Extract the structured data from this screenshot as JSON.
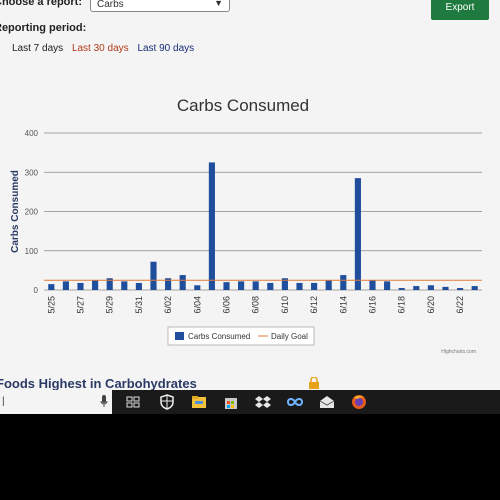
{
  "header": {
    "report_label": "Choose a report:",
    "report_value": "Carbs",
    "export_label": "Export",
    "period_label": "Reporting period:",
    "periods": [
      "Last 7 days",
      "Last 30 days",
      "Last 90 days"
    ]
  },
  "chart_data": {
    "type": "bar",
    "title": "Carbs Consumed",
    "ylabel": "Carbs Consumed",
    "xlabel": "",
    "ylim": [
      0,
      400
    ],
    "yticks": [
      0,
      100,
      200,
      300,
      400
    ],
    "categories": [
      "5/25",
      "5/26",
      "5/27",
      "5/28",
      "5/29",
      "5/30",
      "5/31",
      "6/01",
      "6/02",
      "6/03",
      "6/04",
      "6/05",
      "6/06",
      "6/07",
      "6/08",
      "6/09",
      "6/10",
      "6/11",
      "6/12",
      "6/13",
      "6/14",
      "6/15",
      "6/16",
      "6/17",
      "6/18",
      "6/19",
      "6/20",
      "6/21",
      "6/22",
      "6/23"
    ],
    "tick_labels": [
      "5/25",
      "5/27",
      "5/29",
      "5/31",
      "6/02",
      "6/04",
      "6/06",
      "6/08",
      "6/10",
      "6/12",
      "6/14",
      "6/16",
      "6/18",
      "6/20",
      "6/22"
    ],
    "series": [
      {
        "name": "Carbs Consumed",
        "type": "bar",
        "color": "#1f4e9c",
        "values": [
          15,
          22,
          18,
          25,
          30,
          22,
          18,
          72,
          30,
          38,
          12,
          325,
          20,
          22,
          22,
          18,
          30,
          18,
          18,
          25,
          38,
          285,
          25,
          22,
          5,
          10,
          12,
          8,
          5,
          10
        ]
      },
      {
        "name": "Daily Goal",
        "type": "line",
        "color": "#e07b39",
        "value": 25
      }
    ],
    "legend_position": "bottom",
    "grid": true,
    "credit": "Highcharts.com"
  },
  "footer": {
    "section_title": "Foods Highest in Carbohydrates"
  },
  "taskbar": {
    "cursor_char": "|",
    "icons": [
      "task-view-icon",
      "security-shield-icon",
      "file-explorer-icon",
      "store-icon",
      "dropbox-icon",
      "infinity-icon",
      "mail-icon",
      "firefox-icon"
    ]
  }
}
